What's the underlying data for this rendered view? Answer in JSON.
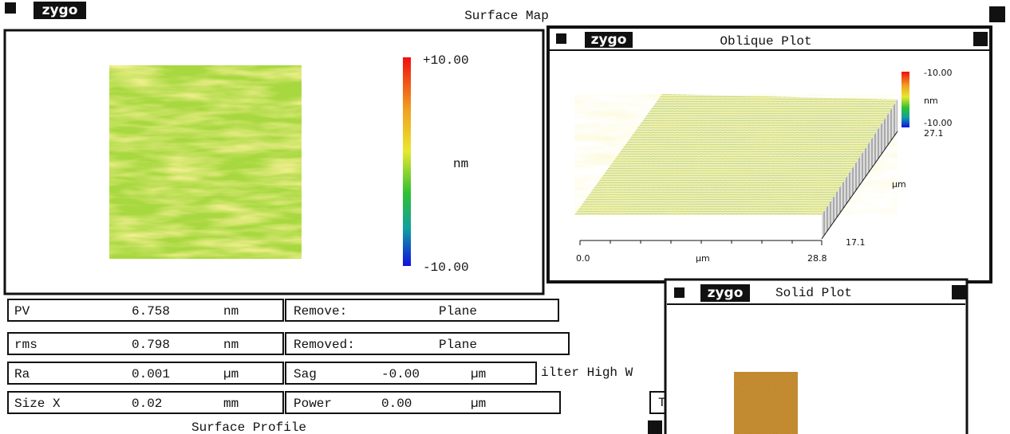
{
  "main_window": {
    "logo": "zygo",
    "title": "Surface Map",
    "colorbar": {
      "max": "+10.00",
      "unit": "nm",
      "min": "-10.00"
    }
  },
  "oblique_window": {
    "logo": "zygo",
    "title": "Oblique Plot",
    "legend": {
      "max": "-10.00",
      "unit": "nm",
      "min": "-10.00"
    },
    "x_axis": {
      "start": "0.0",
      "unit": "µm",
      "end": "28.8"
    },
    "y_axis": {
      "end": "27.1",
      "unit": "µm",
      "start": "17.1"
    }
  },
  "solid_window": {
    "logo": "zygo",
    "title": "Solid Plot"
  },
  "results": {
    "rows": [
      [
        "PV",
        "6.758",
        "nm"
      ],
      [
        "rms",
        "0.798",
        "nm"
      ],
      [
        "Ra",
        "0.001",
        "µm"
      ],
      [
        "Size X",
        "0.02",
        "mm"
      ]
    ]
  },
  "settings": {
    "rows": [
      [
        "Remove:",
        "Plane"
      ],
      [
        "Removed:",
        "Plane"
      ],
      [
        "Sag",
        "-0.00",
        "µm"
      ],
      [
        "Power",
        "0.00",
        "µm"
      ]
    ]
  },
  "partial_texts": [
    "ilter High W",
    "T"
  ],
  "bottom_window": {
    "title": "Surface Profile"
  }
}
